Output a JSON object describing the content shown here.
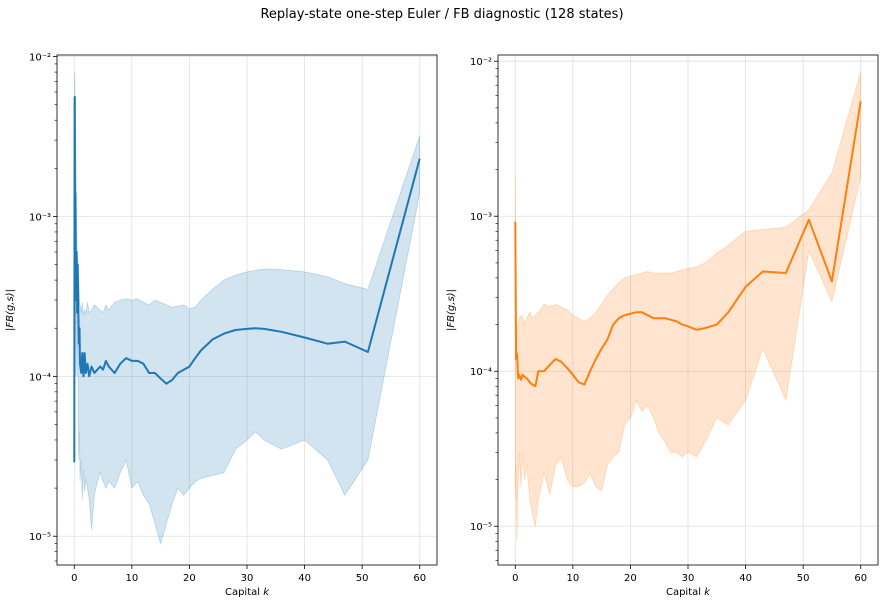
{
  "figure": {
    "suptitle": "Replay-state one-step Euler / FB diagnostic (128 states)"
  },
  "chart_data": [
    {
      "type": "line",
      "title": "",
      "xlabel": "Capital $k$",
      "xlabel_plain": "Capital ",
      "xlabel_italic": "k",
      "ylabel": "|FB(g,s)|",
      "yscale": "log",
      "xlim": [
        -3,
        63
      ],
      "ylim_exp": [
        -5.18,
        -1.99
      ],
      "xticks": [
        0,
        10,
        20,
        30,
        40,
        50,
        60
      ],
      "yticks": [
        {
          "exp": -5,
          "label": "10⁻⁵"
        },
        {
          "exp": -4,
          "label": "10⁻⁴"
        },
        {
          "exp": -3,
          "label": "10⁻³"
        },
        {
          "exp": -2,
          "label": "10⁻²"
        }
      ],
      "grid": true,
      "color": "#1f77b4",
      "series": [
        {
          "x": [
            0.0,
            0.05,
            0.1,
            0.15,
            0.2,
            0.3,
            0.4,
            0.5,
            0.6,
            0.7,
            0.8,
            0.9,
            1.0,
            1.2,
            1.4,
            1.6,
            1.8,
            2.0,
            2.3,
            2.6,
            3.0,
            3.5,
            4.0,
            4.5,
            5.0,
            5.5,
            6.0,
            7.0,
            8.0,
            9.0,
            10.0,
            11.0,
            12.0,
            13.0,
            14.0,
            15.0,
            16.0,
            17.0,
            18.0,
            19.0,
            20.0,
            21.0,
            22.0,
            24.0,
            26.0,
            28.0,
            30.0,
            31.5,
            33.0,
            36.0,
            40.0,
            44.0,
            47.0,
            51.0,
            60.0
          ],
          "median": [
            2.9e-05,
            0.0055,
            0.0056,
            0.00033,
            0.0014,
            0.0003,
            0.0006,
            0.00025,
            0.0005,
            0.00026,
            0.00016,
            0.0002,
            0.00012,
            0.000105,
            0.00014,
            0.0001,
            0.00014,
            0.000105,
            0.00012,
            0.0001,
            0.000115,
            0.000105,
            0.00011,
            0.000115,
            0.00011,
            0.000125,
            0.000115,
            0.000105,
            0.00012,
            0.00013,
            0.000125,
            0.000125,
            0.00012,
            0.000105,
            0.000105,
            9.7e-05,
            9e-05,
            9.5e-05,
            0.000105,
            0.00011,
            0.000115,
            0.00013,
            0.000145,
            0.00017,
            0.000185,
            0.000195,
            0.000198,
            0.0002,
            0.000198,
            0.00019,
            0.000175,
            0.00016,
            0.000165,
            0.000142,
            0.0023
          ],
          "lower": [
            2.9e-05,
            2.9e-05,
            0.0003,
            0.0001,
            0.0006,
            0.0001,
            0.0004,
            0.0001,
            0.0002,
            5e-05,
            3e-05,
            4.5e-05,
            2.2e-05,
            3e-05,
            1.7e-05,
            2.6e-05,
            1.9e-05,
            2.3e-05,
            2e-05,
            1.7e-05,
            1.1e-05,
            1.8e-05,
            2.2e-05,
            2.5e-05,
            2.2e-05,
            2e-05,
            2.2e-05,
            2e-05,
            2.5e-05,
            3e-05,
            2e-05,
            2.2e-05,
            1.8e-05,
            1.6e-05,
            1.2e-05,
            9e-06,
            1.2e-05,
            1.6e-05,
            2e-05,
            1.8e-05,
            2e-05,
            2.2e-05,
            2.3e-05,
            2.4e-05,
            2.5e-05,
            3.5e-05,
            4e-05,
            4.5e-05,
            4e-05,
            3.5e-05,
            4e-05,
            3e-05,
            1.8e-05,
            3e-05,
            0.0014
          ],
          "upper": [
            2.9e-05,
            0.008,
            0.0075,
            0.005,
            0.004,
            0.002,
            0.001,
            0.0006,
            0.00055,
            0.0005,
            0.0004,
            0.0003,
            0.00028,
            0.00025,
            0.00029,
            0.00024,
            0.00026,
            0.00025,
            0.00029,
            0.00025,
            0.00026,
            0.00028,
            0.00027,
            0.00026,
            0.00025,
            0.00028,
            0.00026,
            0.00029,
            0.0003,
            0.000305,
            0.0003,
            0.000305,
            0.00029,
            0.00028,
            0.0003,
            0.00029,
            0.00028,
            0.00027,
            0.000275,
            0.00028,
            0.000265,
            0.00027,
            0.0003,
            0.00035,
            0.0004,
            0.00043,
            0.00045,
            0.00046,
            0.00047,
            0.000465,
            0.00045,
            0.00042,
            0.00038,
            0.00035,
            0.0032
          ]
        }
      ]
    },
    {
      "type": "line",
      "title": "",
      "xlabel": "Capital $k$",
      "xlabel_plain": "Capital ",
      "xlabel_italic": "k",
      "ylabel": "|FB(g,s)|",
      "yscale": "log",
      "xlim": [
        -3,
        63
      ],
      "ylim_exp": [
        -5.25,
        -1.96
      ],
      "xticks": [
        0,
        10,
        20,
        30,
        40,
        50,
        60
      ],
      "yticks": [
        {
          "exp": -5,
          "label": "10⁻⁵"
        },
        {
          "exp": -4,
          "label": "10⁻⁴"
        },
        {
          "exp": -3,
          "label": "10⁻³"
        },
        {
          "exp": -2,
          "label": "10⁻²"
        }
      ],
      "grid": true,
      "color": "#ff7f0e",
      "series": [
        {
          "x": [
            0.0,
            0.15,
            0.3,
            0.5,
            0.7,
            1.0,
            1.3,
            1.6,
            2.0,
            2.5,
            3.0,
            3.5,
            4.0,
            5.0,
            6.0,
            7.0,
            8.0,
            9.0,
            10.0,
            11.0,
            12.0,
            13.0,
            14.0,
            15.0,
            16.0,
            17.0,
            18.0,
            19.0,
            20.0,
            21.0,
            22.0,
            23.0,
            24.0,
            25.0,
            26.0,
            27.0,
            28.0,
            29.0,
            30.0,
            31.5,
            33.0,
            35.0,
            37.0,
            40.0,
            43.0,
            47.0,
            51.0,
            55.0,
            60.0
          ],
          "median": [
            0.00092,
            0.00012,
            0.00013,
            9e-05,
            9.5e-05,
            8.8e-05,
            9.5e-05,
            9.2e-05,
            9e-05,
            8.5e-05,
            8.2e-05,
            8e-05,
            0.0001,
            0.0001,
            0.00011,
            0.00012,
            0.000115,
            0.000105,
            9.5e-05,
            8.5e-05,
            8.2e-05,
            0.0001,
            0.00012,
            0.00014,
            0.00016,
            0.0002,
            0.00022,
            0.00023,
            0.000235,
            0.00024,
            0.00024,
            0.00023,
            0.00022,
            0.00022,
            0.00022,
            0.000215,
            0.00021,
            0.0002,
            0.000195,
            0.000185,
            0.00019,
            0.0002,
            0.00024,
            0.00035,
            0.00044,
            0.00043,
            0.00095,
            0.00038,
            0.0055
          ],
          "lower": [
            1.5e-05,
            2.5e-05,
            8e-06,
            2e-05,
            3e-05,
            1.8e-05,
            3e-05,
            2e-05,
            2.5e-05,
            1.5e-05,
            1.2e-05,
            1e-05,
            1.5e-05,
            2.2e-05,
            1.6e-05,
            2.5e-05,
            2.8e-05,
            2e-05,
            1.8e-05,
            1.8e-05,
            1.9e-05,
            2.2e-05,
            1.8e-05,
            1.7e-05,
            2.5e-05,
            2.8e-05,
            3e-05,
            4.5e-05,
            5e-05,
            6.5e-05,
            5.5e-05,
            6e-05,
            5e-05,
            4e-05,
            3.5e-05,
            3e-05,
            3e-05,
            2.8e-05,
            3e-05,
            2.8e-05,
            3.5e-05,
            5e-05,
            4.5e-05,
            6.5e-05,
            0.00014,
            6.5e-05,
            0.0006,
            0.00028,
            0.0018
          ],
          "upper": [
            0.0018,
            0.0002,
            0.00018,
            0.0002,
            0.00022,
            0.00023,
            0.00022,
            0.0002,
            0.00022,
            0.00024,
            0.00022,
            0.00023,
            0.00024,
            0.00027,
            0.00026,
            0.00027,
            0.00026,
            0.00025,
            0.00023,
            0.00022,
            0.00021,
            0.00022,
            0.00024,
            0.00027,
            0.00031,
            0.00034,
            0.00037,
            0.0004,
            0.00041,
            0.00042,
            0.00043,
            0.00044,
            0.00043,
            0.00043,
            0.00043,
            0.00043,
            0.00044,
            0.00045,
            0.00046,
            0.00047,
            0.0005,
            0.00058,
            0.00065,
            0.0008,
            0.00082,
            0.00085,
            0.0011,
            0.0019,
            0.0085
          ]
        }
      ]
    }
  ]
}
